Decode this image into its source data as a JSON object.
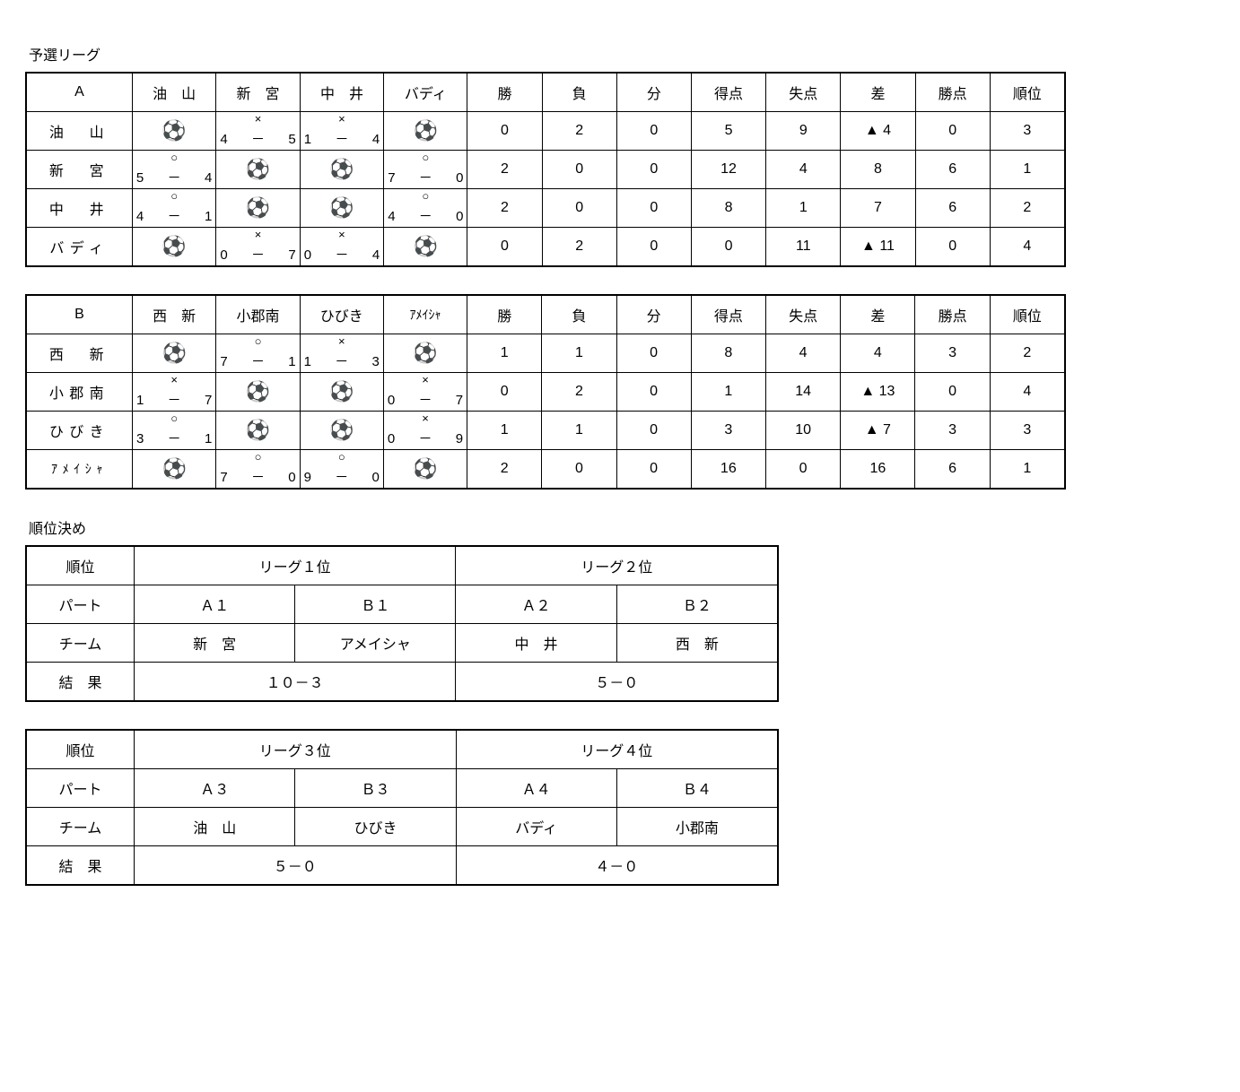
{
  "section_titles": {
    "preliminary": "予選リーグ",
    "playoff": "順位決め"
  },
  "league_headers": {
    "win": "勝",
    "loss": "負",
    "draw": "分",
    "gf": "得点",
    "ga": "失点",
    "diff": "差",
    "pts": "勝点",
    "rank": "順位"
  },
  "groups": [
    {
      "name": "A",
      "name_letter_spacing": "0",
      "teams": [
        "油　山",
        "新　宮",
        "中　井",
        "バディ"
      ],
      "team_fontsize": [
        "16px",
        "16px",
        "16px",
        "16px"
      ],
      "matrix": [
        [
          {
            "type": "self"
          },
          {
            "type": "score",
            "mark": "×",
            "a": "4",
            "b": "5"
          },
          {
            "type": "score",
            "mark": "×",
            "a": "1",
            "b": "4"
          },
          {
            "type": "self"
          }
        ],
        [
          {
            "type": "score",
            "mark": "○",
            "a": "5",
            "b": "4"
          },
          {
            "type": "self"
          },
          {
            "type": "self"
          },
          {
            "type": "score",
            "mark": "○",
            "a": "7",
            "b": "0"
          }
        ],
        [
          {
            "type": "score",
            "mark": "○",
            "a": "4",
            "b": "1"
          },
          {
            "type": "self"
          },
          {
            "type": "self"
          },
          {
            "type": "score",
            "mark": "○",
            "a": "4",
            "b": "0"
          }
        ],
        [
          {
            "type": "self"
          },
          {
            "type": "score",
            "mark": "×",
            "a": "0",
            "b": "7"
          },
          {
            "type": "score",
            "mark": "×",
            "a": "0",
            "b": "4"
          },
          {
            "type": "self"
          }
        ]
      ],
      "stats": [
        {
          "win": "0",
          "loss": "2",
          "draw": "0",
          "gf": "5",
          "ga": "9",
          "diff": "▲ 4",
          "pts": "0",
          "rank": "3"
        },
        {
          "win": "2",
          "loss": "0",
          "draw": "0",
          "gf": "12",
          "ga": "4",
          "diff": "8",
          "pts": "6",
          "rank": "1"
        },
        {
          "win": "2",
          "loss": "0",
          "draw": "0",
          "gf": "8",
          "ga": "1",
          "diff": "7",
          "pts": "6",
          "rank": "2"
        },
        {
          "win": "0",
          "loss": "2",
          "draw": "0",
          "gf": "0",
          "ga": "11",
          "diff": "▲ 11",
          "pts": "0",
          "rank": "4"
        }
      ]
    },
    {
      "name": "B",
      "name_letter_spacing": "0",
      "teams": [
        "西　新",
        "小郡南",
        "ひびき",
        "ｱﾒｲｼｬ"
      ],
      "team_fontsize": [
        "16px",
        "16px",
        "16px",
        "14px"
      ],
      "matrix": [
        [
          {
            "type": "self"
          },
          {
            "type": "score",
            "mark": "○",
            "a": "7",
            "b": "1"
          },
          {
            "type": "score",
            "mark": "×",
            "a": "1",
            "b": "3"
          },
          {
            "type": "self"
          }
        ],
        [
          {
            "type": "score",
            "mark": "×",
            "a": "1",
            "b": "7"
          },
          {
            "type": "self"
          },
          {
            "type": "self"
          },
          {
            "type": "score",
            "mark": "×",
            "a": "0",
            "b": "7"
          }
        ],
        [
          {
            "type": "score",
            "mark": "○",
            "a": "3",
            "b": "1"
          },
          {
            "type": "self"
          },
          {
            "type": "self"
          },
          {
            "type": "score",
            "mark": "×",
            "a": "0",
            "b": "9"
          }
        ],
        [
          {
            "type": "self"
          },
          {
            "type": "score",
            "mark": "○",
            "a": "7",
            "b": "0"
          },
          {
            "type": "score",
            "mark": "○",
            "a": "9",
            "b": "0"
          },
          {
            "type": "self"
          }
        ]
      ],
      "stats": [
        {
          "win": "1",
          "loss": "1",
          "draw": "0",
          "gf": "8",
          "ga": "4",
          "diff": "4",
          "pts": "3",
          "rank": "2"
        },
        {
          "win": "0",
          "loss": "2",
          "draw": "0",
          "gf": "1",
          "ga": "14",
          "diff": "▲ 13",
          "pts": "0",
          "rank": "4"
        },
        {
          "win": "1",
          "loss": "1",
          "draw": "0",
          "gf": "3",
          "ga": "10",
          "diff": "▲ 7",
          "pts": "3",
          "rank": "3"
        },
        {
          "win": "2",
          "loss": "0",
          "draw": "0",
          "gf": "16",
          "ga": "0",
          "diff": "16",
          "pts": "6",
          "rank": "1"
        }
      ]
    }
  ],
  "playoff_labels": {
    "rank": "順位",
    "part": "パート",
    "team": "チーム",
    "result": "結　果"
  },
  "playoffs": [
    {
      "left": {
        "title": "リーグ１位",
        "parts": [
          "Ａ１",
          "Ｂ１"
        ],
        "teams": [
          "新　宮",
          "アメイシャ"
        ],
        "result": "１０－３"
      },
      "right": {
        "title": "リーグ２位",
        "parts": [
          "Ａ２",
          "Ｂ２"
        ],
        "teams": [
          "中　井",
          "西　新"
        ],
        "result": "５－０"
      }
    },
    {
      "left": {
        "title": "リーグ３位",
        "parts": [
          "Ａ３",
          "Ｂ３"
        ],
        "teams": [
          "油　山",
          "ひびき"
        ],
        "result": "５－０"
      },
      "right": {
        "title": "リーグ４位",
        "parts": [
          "Ａ４",
          "Ｂ４"
        ],
        "teams": [
          "バディ",
          "小郡南"
        ],
        "result": "４－０"
      }
    }
  ]
}
